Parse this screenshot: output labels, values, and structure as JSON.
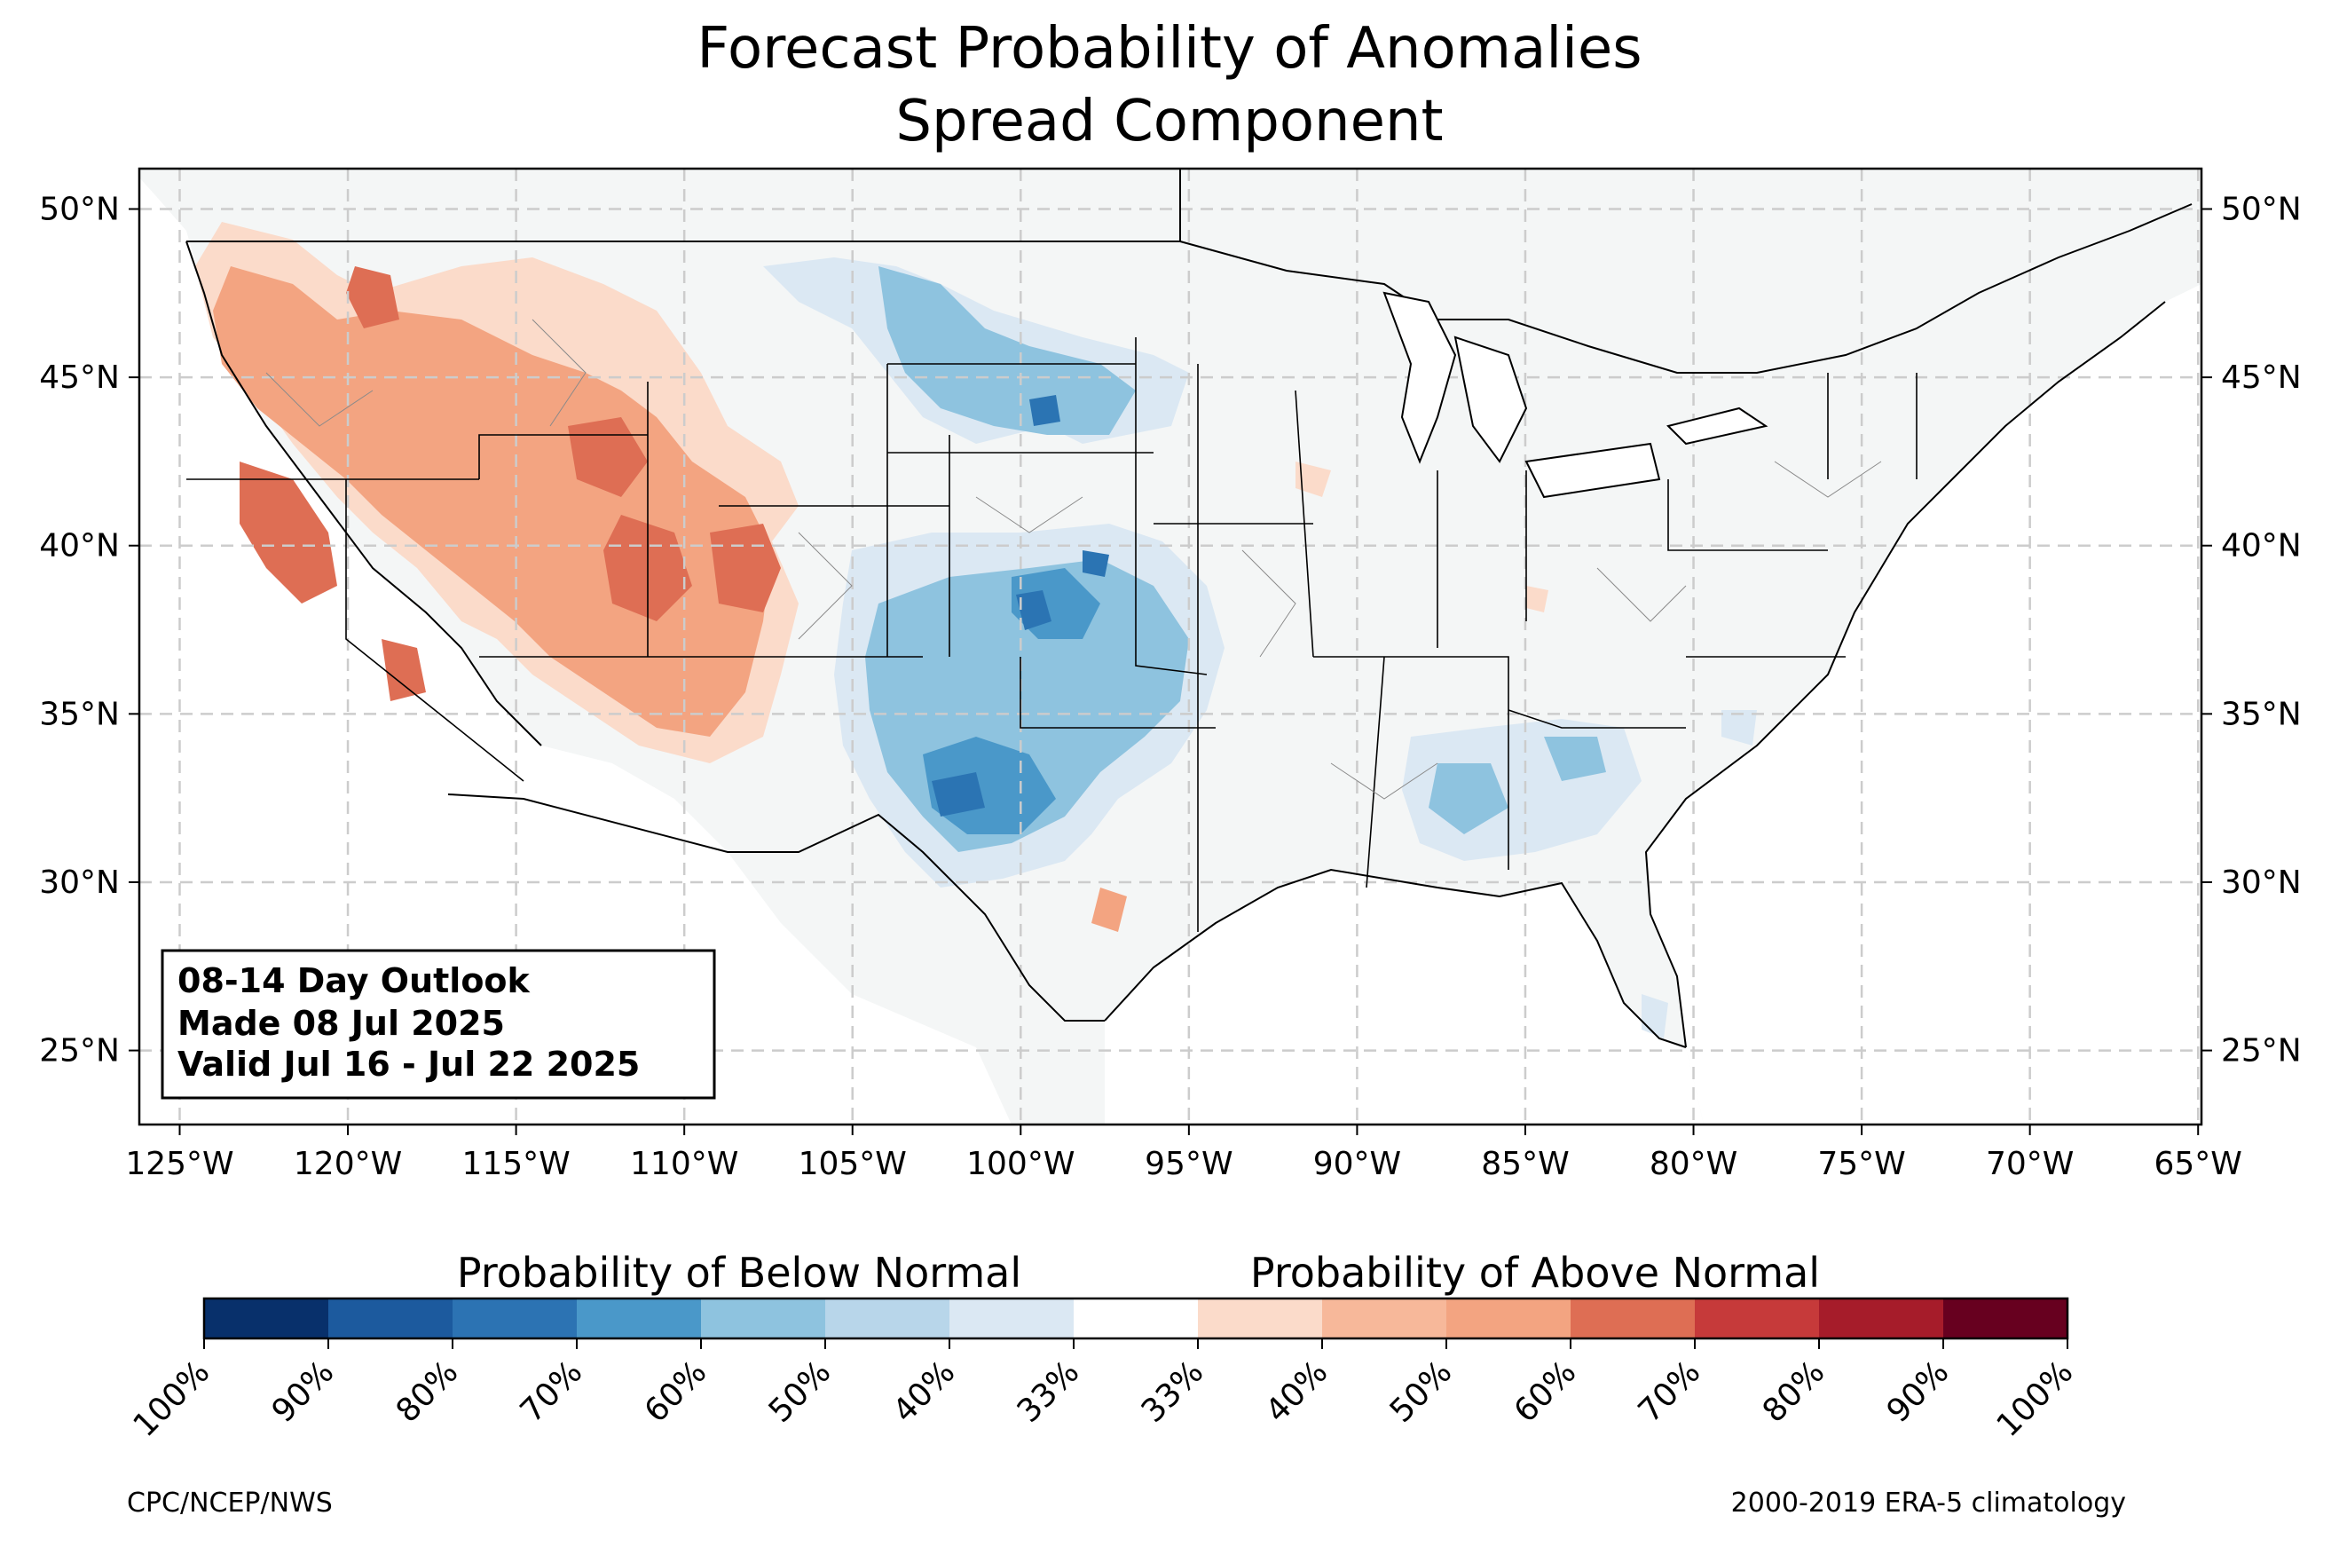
{
  "title": {
    "line1": "Forecast Probability of Anomalies",
    "line2": "Spread Component"
  },
  "map": {
    "lat_labels": [
      "50°N",
      "45°N",
      "40°N",
      "35°N",
      "30°N",
      "25°N"
    ],
    "lat_values": [
      50,
      45,
      40,
      35,
      30,
      25
    ],
    "lon_labels": [
      "125°W",
      "120°W",
      "115°W",
      "110°W",
      "105°W",
      "100°W",
      "95°W",
      "90°W",
      "85°W",
      "80°W",
      "75°W",
      "70°W",
      "65°W"
    ],
    "lon_values": [
      -125,
      -120,
      -115,
      -110,
      -105,
      -100,
      -95,
      -90,
      -85,
      -80,
      -75,
      -70,
      -65
    ],
    "extent": {
      "lon_min": -126.2,
      "lon_max": -64.9,
      "lat_min": 22.8,
      "lat_max": 51.2
    },
    "gridlines": "dashed",
    "colors": {
      "land": "#f4f6f6",
      "above_light": "#fbdbca",
      "above_mid": "#f3a481",
      "above_strong": "#de6e54",
      "below_light": "#dbe8f3",
      "below_mid": "#8ec3df",
      "below_strong": "#4a98c9",
      "below_darker": "#2b74b3"
    }
  },
  "infobox": {
    "line1": "08-14 Day Outlook",
    "line2": "Made 08 Jul 2025",
    "line3": "Valid Jul 16 - Jul 22 2025"
  },
  "legend": {
    "below_title": "Probability of Below Normal",
    "above_title": "Probability of Above Normal",
    "tick_labels": [
      "100%",
      "90%",
      "80%",
      "70%",
      "60%",
      "50%",
      "40%",
      "33%",
      "33%",
      "40%",
      "50%",
      "60%",
      "70%",
      "80%",
      "90%",
      "100%"
    ],
    "colors": [
      "#08306b",
      "#1c5a9e",
      "#2c73b3",
      "#4a98c9",
      "#8ec3df",
      "#b8d6ea",
      "#dbe8f3",
      "#ffffff",
      "#fbdbca",
      "#f7b89a",
      "#f3a481",
      "#de6e54",
      "#c63a3a",
      "#a61c2a",
      "#67001f"
    ]
  },
  "footer": {
    "left": "CPC/NCEP/NWS",
    "right": "2000-2019 ERA-5 climatology"
  }
}
